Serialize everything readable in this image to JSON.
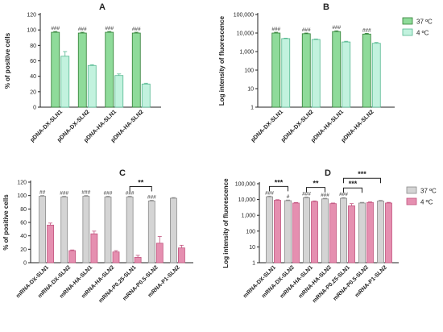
{
  "chart_data": [
    {
      "panel": "A",
      "type": "bar",
      "ylabel": "% of positive cells",
      "ylim": [
        0,
        120
      ],
      "yticks": [
        0,
        20,
        40,
        60,
        80,
        100,
        120
      ],
      "tick_labels": [
        "0",
        "20",
        "40",
        "60",
        "80",
        "100",
        "120"
      ],
      "categories": [
        "pDNA-DX-SLN1",
        "pDNA-DX-SLN2",
        "pDNA-HA-SLN1",
        "pDNA-HA-SLN2"
      ],
      "series": [
        {
          "values": [
            97,
            96,
            97,
            96
          ],
          "errors": [
            1,
            1,
            1,
            1
          ],
          "color": "#8fdb9a",
          "stroke": "#2e7d32",
          "annotations": [
            "###",
            "###",
            "###",
            "###"
          ]
        },
        {
          "values": [
            66,
            54,
            41,
            30
          ],
          "errors": [
            6,
            1,
            2,
            1
          ],
          "color": "#c2f2de",
          "stroke": "#55b890",
          "annotations": [
            "",
            "",
            "",
            ""
          ]
        }
      ]
    },
    {
      "panel": "B",
      "type": "bar",
      "ylabel": "Log intensity of fluorescence",
      "scale": "log",
      "ylim": [
        1,
        100000
      ],
      "yticks": [
        1,
        10,
        100,
        1000,
        10000,
        100000
      ],
      "tick_labels": [
        "1",
        "10",
        "100",
        "1,000",
        "10,000",
        "100,000"
      ],
      "categories": [
        "pDNA-DX-SLN1",
        "pDNA-DX-SLN2",
        "pDNA-HA-SLN1",
        "pDNA-HA-SLN2"
      ],
      "legend": {
        "position": "top-right",
        "items": [
          "37 ºC",
          "4 ºC"
        ]
      },
      "series": [
        {
          "name": "37 ºC",
          "values": [
            10000,
            9200,
            12000,
            8800
          ],
          "errors": [
            1000,
            800,
            1200,
            800
          ],
          "color": "#8fdb9a",
          "stroke": "#2e7d32",
          "annotations": [
            "###",
            "###",
            "###",
            "###"
          ]
        },
        {
          "name": "4 ºC",
          "values": [
            5000,
            4500,
            3300,
            2800
          ],
          "errors": [
            300,
            300,
            300,
            300
          ],
          "color": "#c2f2de",
          "stroke": "#55b890",
          "annotations": [
            "",
            "",
            "",
            ""
          ]
        }
      ]
    },
    {
      "panel": "C",
      "type": "bar",
      "ylabel": "% of positive cells",
      "ylim": [
        0,
        120
      ],
      "yticks": [
        0,
        20,
        40,
        60,
        80,
        100,
        120
      ],
      "tick_labels": [
        "0",
        "20",
        "40",
        "60",
        "80",
        "100",
        "120"
      ],
      "categories": [
        "mRNA-DX-SLN1",
        "mRNA-DX-SLN2",
        "mRNA-HA-SLN1",
        "mRNA-HA-SLN2",
        "mRNA-P0.25-SLN1",
        "mRNA-P0.5-SLN2",
        "mRNA-P1-SLN2"
      ],
      "series": [
        {
          "values": [
            99,
            98,
            99,
            98,
            98,
            92,
            96
          ],
          "errors": [
            1,
            1,
            1,
            1,
            1,
            1,
            1
          ],
          "color": "#d4d4d4",
          "stroke": "#8a8a8a",
          "annotations": [
            "##",
            "###",
            "###",
            "###",
            "###",
            "###",
            ""
          ]
        },
        {
          "values": [
            56,
            18,
            43,
            16,
            8,
            29,
            22
          ],
          "errors": [
            3,
            1,
            4,
            2,
            3,
            10,
            4
          ],
          "color": "#e58fb0",
          "stroke": "#c2547f",
          "annotations": [
            "",
            "",
            "",
            "",
            "",
            "",
            ""
          ]
        }
      ],
      "brackets": [
        {
          "from": 4,
          "to": 5,
          "label": "**"
        }
      ]
    },
    {
      "panel": "D",
      "type": "bar",
      "ylabel": "Log intensity of fluorescence",
      "scale": "log",
      "ylim": [
        1,
        100000
      ],
      "yticks": [
        1,
        10,
        100,
        1000,
        10000,
        100000
      ],
      "tick_labels": [
        "1",
        "10",
        "100",
        "1,000",
        "10,000",
        "100,000"
      ],
      "categories": [
        "mRNA-DX-SLN1",
        "mRNA-DX-SLN2",
        "mRNA-HA-SLN1",
        "mRNA-HA-SLN2",
        "mRNA-P0.25-SLN1",
        "mRNA-P0.5-SLN2",
        "mRNA-P1-SLN2"
      ],
      "legend": {
        "position": "top-right",
        "items": [
          "37 ºC",
          "4 ºC"
        ]
      },
      "series": [
        {
          "name": "37 ºC",
          "values": [
            15000,
            8500,
            13000,
            11000,
            12000,
            6000,
            8000
          ],
          "errors": [
            1500,
            800,
            1200,
            1000,
            1200,
            600,
            800
          ],
          "color": "#d4d4d4",
          "stroke": "#8a8a8a",
          "annotations": [
            "###",
            "#",
            "###",
            "###",
            "###",
            "",
            ""
          ]
        },
        {
          "name": "4 ºC",
          "values": [
            9000,
            6000,
            7500,
            5500,
            4000,
            6500,
            6000
          ],
          "errors": [
            800,
            500,
            700,
            500,
            1500,
            600,
            600
          ],
          "color": "#e58fb0",
          "stroke": "#c2547f",
          "annotations": [
            "",
            "",
            "",
            "",
            "",
            "",
            ""
          ]
        }
      ],
      "brackets": [
        {
          "from": 0,
          "to": 1,
          "label": "***"
        },
        {
          "from": 2,
          "to": 3,
          "label": "**"
        },
        {
          "from": 4,
          "to": 5,
          "label": "***"
        },
        {
          "from": 4,
          "to": 6,
          "label": "***"
        }
      ]
    }
  ]
}
